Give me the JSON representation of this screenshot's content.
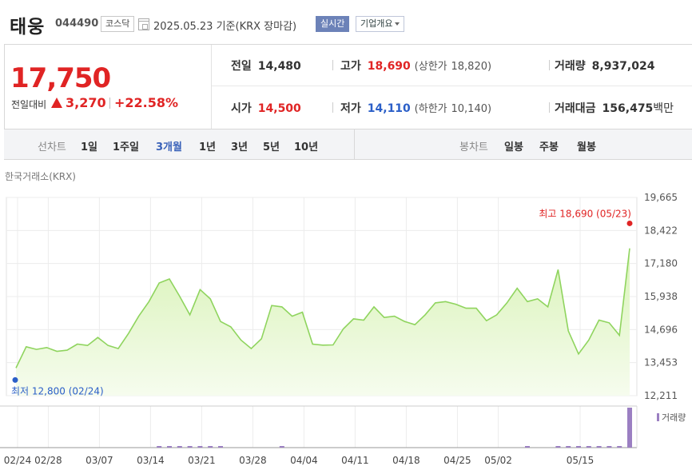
{
  "header": {
    "stock_name": "태웅",
    "stock_code": "044490",
    "market": "코스닥",
    "date": "2025.05.23",
    "basis": "기준(KRX 장마감)",
    "realtime_label": "실시간",
    "company_overview_label": "기업개요"
  },
  "summary": {
    "price": "17,750",
    "change_label": "전일대비",
    "change": "3,270",
    "change_pct": "+22.58%",
    "prev_close_label": "전일",
    "prev_close": "14,480",
    "high_label": "고가",
    "high": "18,690",
    "upper_limit_label": "(상한가",
    "upper_limit": "18,820)",
    "volume_label": "거래량",
    "volume": "8,937,024",
    "open_label": "시가",
    "open": "14,500",
    "low_label": "저가",
    "low": "14,110",
    "lower_limit_label": "(하한가",
    "lower_limit": "10,140)",
    "value_label": "거래대금",
    "value": "156,475",
    "value_unit": "백만"
  },
  "tabs": {
    "line_chart_label": "선차트",
    "periods": [
      "1일",
      "1주일",
      "3개월",
      "1년",
      "3년",
      "5년",
      "10년"
    ],
    "active_period": "3개월",
    "candle_label": "봉차트",
    "candle_periods": [
      "일봉",
      "주봉",
      "월봉"
    ]
  },
  "chart": {
    "exchange_label": "한국거래소(KRX)",
    "max_annotation": "최고 18,690 (05/23)",
    "min_annotation": "최저 12,800 (02/24)",
    "volume_legend": "거래량",
    "colors": {
      "line": "#8fd45e",
      "fill_top": "#d9f3b8",
      "fill_bottom": "#f6fcee",
      "max": "#e02424",
      "min": "#2b5fc8",
      "volume": "#9b7fc2"
    }
  },
  "chart_data": {
    "type": "area",
    "y_ticks": [
      "19,665",
      "18,422",
      "17,180",
      "15,938",
      "14,696",
      "13,453",
      "12,211"
    ],
    "ylim": [
      12211,
      19665
    ],
    "x_ticks": [
      "02/24",
      "02/28",
      "03/07",
      "03/14",
      "03/21",
      "03/28",
      "04/04",
      "04/11",
      "04/18",
      "04/25",
      "05/02",
      "05/15"
    ],
    "series": [
      {
        "values": [
          13250,
          14050,
          13950,
          14020,
          13880,
          13920,
          14150,
          14100,
          14400,
          14100,
          13980,
          14550,
          15200,
          15750,
          16450,
          16600,
          15950,
          15250,
          16200,
          15850,
          15000,
          14800,
          14300,
          13980,
          14350,
          15600,
          15550,
          15200,
          15350,
          14150,
          14110,
          14120,
          14720,
          15100,
          15050,
          15550,
          15150,
          15200,
          15000,
          14880,
          15250,
          15700,
          15750,
          15650,
          15500,
          15500,
          15030,
          15250,
          15700,
          16250,
          15750,
          15850,
          15550,
          16950,
          14650,
          13780,
          14300,
          15050,
          14950,
          14480,
          17750
        ]
      }
    ],
    "max": {
      "value": 18690,
      "date": "05/23"
    },
    "min": {
      "value": 12800,
      "date": "02/24"
    },
    "volume": {
      "note": "relative volume, only last day prominent",
      "values": [
        0,
        0,
        0,
        0,
        0,
        0,
        0,
        0,
        0,
        0,
        0,
        0,
        0,
        0,
        0.02,
        0.02,
        0.02,
        0.02,
        0.02,
        0.02,
        0.02,
        0,
        0,
        0,
        0,
        0,
        0.02,
        0,
        0,
        0,
        0,
        0,
        0,
        0,
        0,
        0,
        0,
        0,
        0,
        0,
        0,
        0,
        0,
        0,
        0,
        0,
        0,
        0,
        0,
        0,
        0.02,
        0,
        0,
        0.02,
        0.02,
        0.02,
        0.02,
        0.02,
        0.02,
        0.02,
        1
      ]
    }
  }
}
